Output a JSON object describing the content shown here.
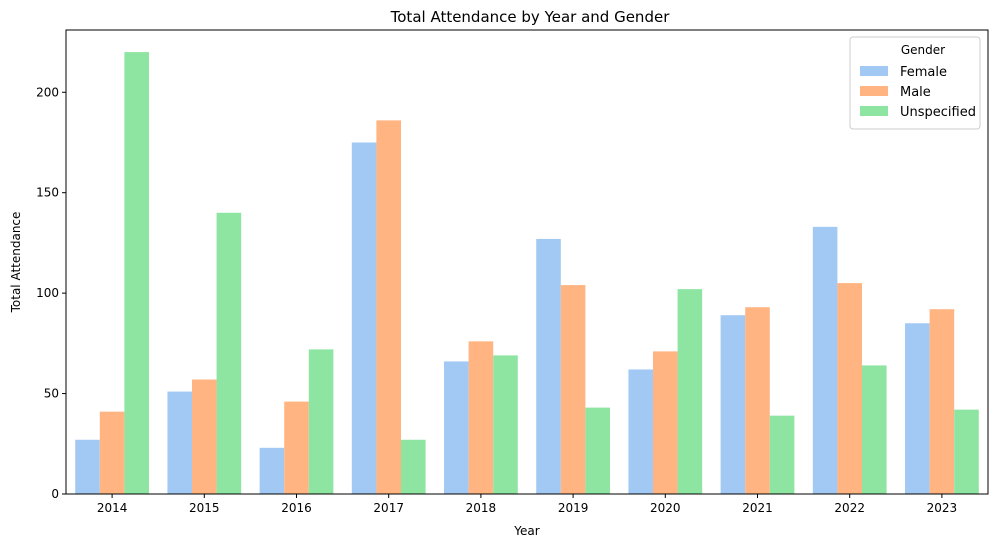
{
  "chart_data": {
    "type": "bar",
    "title": "Total Attendance by Year and Gender",
    "xlabel": "Year",
    "ylabel": "Total Attendance",
    "ylim": [
      0,
      231
    ],
    "yticks": [
      0,
      50,
      100,
      150,
      200
    ],
    "categories": [
      "2014",
      "2015",
      "2016",
      "2017",
      "2018",
      "2019",
      "2020",
      "2021",
      "2022",
      "2023"
    ],
    "legend": {
      "title": "Gender",
      "position": "top-right"
    },
    "grid": false,
    "series": [
      {
        "name": "Female",
        "color": "#a1c9f4",
        "values": [
          27,
          51,
          23,
          175,
          66,
          127,
          62,
          89,
          133,
          85
        ]
      },
      {
        "name": "Male",
        "color": "#ffb482",
        "values": [
          41,
          57,
          46,
          186,
          76,
          104,
          71,
          93,
          105,
          92
        ]
      },
      {
        "name": "Unspecified",
        "color": "#8de5a1",
        "values": [
          220,
          140,
          72,
          27,
          69,
          43,
          102,
          39,
          64,
          42
        ]
      }
    ]
  }
}
